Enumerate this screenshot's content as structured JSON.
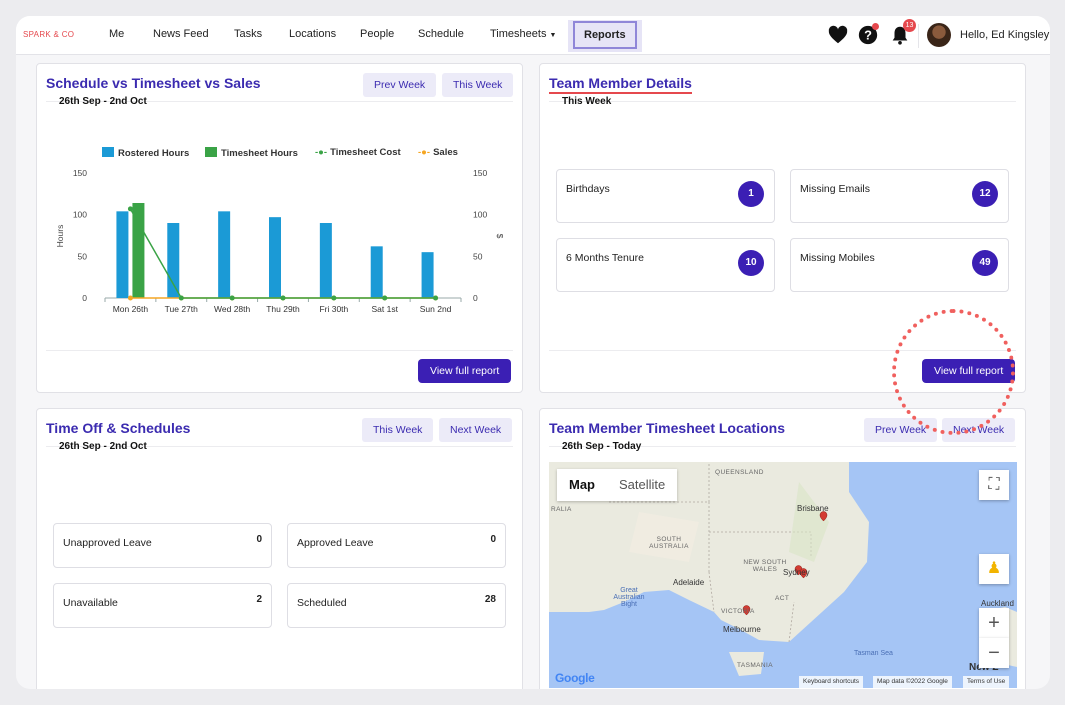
{
  "nav": {
    "brand": "SPARK & CO",
    "items": [
      "Me",
      "News Feed",
      "Tasks",
      "Locations",
      "People",
      "Schedule",
      "Timesheets"
    ],
    "active": "Reports",
    "notifications_count": "13",
    "greeting": "Hello, Ed Kingsley"
  },
  "schedule_card": {
    "title": "Schedule vs Timesheet vs Sales",
    "subtitle": "26th Sep - 2nd Oct",
    "prev_week": "Prev Week",
    "this_week": "This Week",
    "view_report": "View full report"
  },
  "chart_data": {
    "type": "bar",
    "categories": [
      "Mon 26th",
      "Tue 27th",
      "Wed 28th",
      "Thu 29th",
      "Fri 30th",
      "Sat 1st",
      "Sun 2nd"
    ],
    "series": [
      {
        "name": "Rostered Hours",
        "type": "bar",
        "color": "#1b9ad6",
        "values": [
          104,
          90,
          104,
          97,
          90,
          62,
          55
        ]
      },
      {
        "name": "Timesheet Hours",
        "type": "bar",
        "color": "#3aa346",
        "values": [
          114,
          0,
          0,
          0,
          0,
          0,
          0
        ]
      },
      {
        "name": "Timesheet Cost",
        "type": "line",
        "color": "#3aa346",
        "values": [
          107,
          0,
          0,
          0,
          0,
          0,
          0
        ]
      },
      {
        "name": "Sales",
        "type": "line",
        "color": "#f5a623",
        "values": [
          0,
          0,
          0,
          0,
          0,
          0,
          0
        ]
      }
    ],
    "ylabel": "Hours",
    "y2label": "$",
    "ylim": [
      0,
      150
    ],
    "yticks": [
      "0",
      "50",
      "100",
      "150"
    ],
    "legend": "top"
  },
  "team_card": {
    "title": "Team Member Details",
    "subtitle": "This Week",
    "view_report": "View full report",
    "stats": [
      {
        "label": "Birthdays",
        "count": "1"
      },
      {
        "label": "Missing Emails",
        "count": "12"
      },
      {
        "label": "6 Months Tenure",
        "count": "10"
      },
      {
        "label": "Missing Mobiles",
        "count": "49"
      }
    ]
  },
  "timeoff_card": {
    "title": "Time Off & Schedules",
    "subtitle": "26th Sep - 2nd Oct",
    "this_week": "This Week",
    "next_week": "Next Week",
    "items": [
      {
        "label": "Unapproved Leave",
        "value": "0"
      },
      {
        "label": "Approved Leave",
        "value": "0"
      },
      {
        "label": "Unavailable",
        "value": "2"
      },
      {
        "label": "Scheduled",
        "value": "28"
      }
    ]
  },
  "locations_card": {
    "title": "Team Member Timesheet Locations",
    "subtitle": "26th Sep - Today",
    "prev_week": "Prev Week",
    "next_week": "Next Week",
    "map": {
      "tab_map": "Map",
      "tab_satellite": "Satellite",
      "labels": {
        "queensland": "QUEENSLAND",
        "ralia": "RALIA",
        "south_australia": "SOUTH AUSTRALIA",
        "nsw": "NEW SOUTH WALES",
        "act": "ACT",
        "victoria": "VICTORIA",
        "tasmania": "TASMANIA",
        "brisbane": "Brisbane",
        "sydney": "Sydney",
        "adelaide": "Adelaide",
        "melbourne": "Melbourne",
        "auckland": "Auckland",
        "new_z": "New Z",
        "bight": "Great Australian Bight",
        "tasman": "Tasman Sea"
      },
      "google": "Google",
      "shortcuts": "Keyboard shortcuts",
      "mapdata": "Map data ©2022 Google",
      "terms": "Terms of Use"
    }
  }
}
